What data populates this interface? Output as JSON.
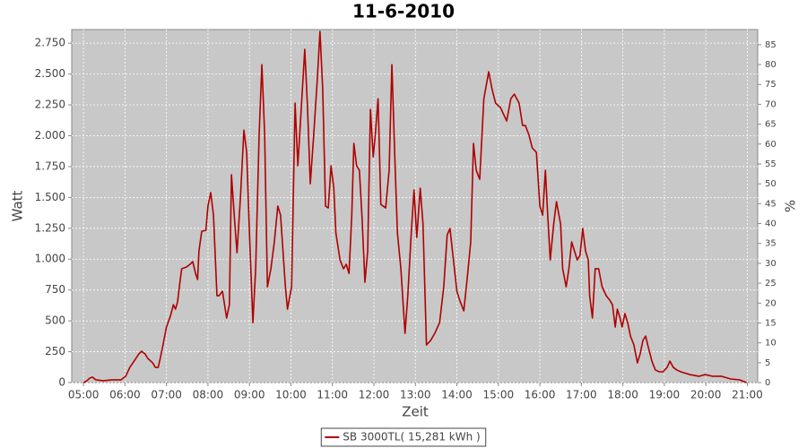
{
  "chart_data": {
    "type": "line",
    "title": "11-6-2010",
    "x_label": "Zeit",
    "y_label": "Watt",
    "y2_label": "%",
    "grid": true,
    "legend": "bottom",
    "background": "#c8c8c8",
    "xlim": [
      "04:43",
      "21:15"
    ],
    "xticks": [
      "05:00",
      "06:00",
      "07:00",
      "08:00",
      "09:00",
      "10:00",
      "11:00",
      "12:00",
      "13:00",
      "14:00",
      "15:00",
      "16:00",
      "17:00",
      "18:00",
      "19:00",
      "20:00",
      "21:00"
    ],
    "ylim": [
      0,
      2860
    ],
    "yticks": [
      0,
      250,
      500,
      750,
      {
        "value": 1000,
        "label": "1.000"
      },
      {
        "value": 1250,
        "label": "1.250"
      },
      {
        "value": 1500,
        "label": "1.500"
      },
      {
        "value": 1750,
        "label": "1.750"
      },
      {
        "value": 2000,
        "label": "2.000"
      },
      {
        "value": 2250,
        "label": "2.250"
      },
      {
        "value": 2500,
        "label": "2.500"
      },
      {
        "value": 2750,
        "label": "2.750"
      }
    ],
    "y2lim": [
      0,
      88.8
    ],
    "y2ticks": [
      0,
      5,
      10,
      15,
      20,
      25,
      30,
      35,
      40,
      45,
      50,
      55,
      60,
      65,
      70,
      75,
      80,
      85
    ],
    "x": [
      "05:00",
      "05:05",
      "05:09",
      "05:13",
      "05:18",
      "05:29",
      "05:41",
      "05:54",
      "06:01",
      "06:07",
      "06:14",
      "06:20",
      "06:24",
      "06:29",
      "06:33",
      "06:40",
      "06:44",
      "06:48",
      "06:51",
      "06:55",
      "07:00",
      "07:06",
      "07:10",
      "07:13",
      "07:16",
      "07:19",
      "07:22",
      "07:29",
      "07:34",
      "07:38",
      "07:42",
      "07:45",
      "07:47",
      "07:51",
      "07:57",
      "08:00",
      "08:04",
      "08:08",
      "08:13",
      "08:16",
      "08:21",
      "08:27",
      "08:31",
      "08:34",
      "08:38",
      "08:42",
      "08:47",
      "08:52",
      "08:56",
      "09:00",
      "09:05",
      "09:09",
      "09:14",
      "09:18",
      "09:22",
      "09:26",
      "09:31",
      "09:36",
      "09:41",
      "09:45",
      "09:52",
      "09:55",
      "10:01",
      "10:06",
      "10:10",
      "10:15",
      "10:20",
      "10:24",
      "10:28",
      "10:33",
      "10:38",
      "10:42",
      "10:46",
      "10:50",
      "10:54",
      "10:58",
      "11:02",
      "11:05",
      "11:11",
      "11:16",
      "11:20",
      "11:24",
      "11:28",
      "11:31",
      "11:35",
      "11:39",
      "11:43",
      "11:47",
      "11:51",
      "11:55",
      "11:59",
      "12:02",
      "12:06",
      "12:10",
      "12:17",
      "12:22",
      "12:26",
      "12:30",
      "12:34",
      "12:39",
      "12:45",
      "12:49",
      "12:54",
      "12:58",
      "13:02",
      "13:07",
      "13:11",
      "13:16",
      "13:22",
      "13:28",
      "13:35",
      "13:41",
      "13:46",
      "13:50",
      "13:55",
      "14:00",
      "14:04",
      "14:10",
      "14:15",
      "14:20",
      "14:24",
      "14:28",
      "14:33",
      "14:39",
      "14:46",
      "14:51",
      "14:56",
      "15:03",
      "15:12",
      "15:18",
      "15:23",
      "15:30",
      "15:35",
      "15:39",
      "15:44",
      "15:49",
      "15:55",
      "16:00",
      "16:04",
      "16:08",
      "16:11",
      "16:15",
      "16:20",
      "16:24",
      "16:30",
      "16:33",
      "16:38",
      "16:42",
      "16:46",
      "16:50",
      "16:54",
      "16:58",
      "17:02",
      "17:06",
      "17:10",
      "17:12",
      "17:16",
      "17:20",
      "17:25",
      "17:30",
      "17:36",
      "17:41",
      "17:45",
      "17:49",
      "17:52",
      "17:56",
      "17:59",
      "18:03",
      "18:07",
      "18:11",
      "18:16",
      "18:21",
      "18:25",
      "18:29",
      "18:33",
      "18:36",
      "18:42",
      "18:47",
      "18:53",
      "18:58",
      "19:04",
      "19:08",
      "19:13",
      "19:18",
      "19:24",
      "19:37",
      "19:50",
      "19:59",
      "20:10",
      "20:23",
      "20:36",
      "20:49",
      "20:59"
    ],
    "series": [
      {
        "name": "SB 3000TL( 15,281 kWh )",
        "color": "#b00000",
        "values": [
          0,
          15,
          36,
          44,
          22,
          15,
          22,
          22,
          51,
          123,
          181,
          232,
          254,
          232,
          196,
          160,
          123,
          123,
          196,
          305,
          450,
          544,
          631,
          595,
          653,
          791,
          922,
          936,
          958,
          980,
          885,
          835,
          1067,
          1226,
          1234,
          1430,
          1539,
          1357,
          704,
          704,
          740,
          523,
          631,
          1684,
          1357,
          1052,
          1502,
          2046,
          1865,
          1212,
          486,
          922,
          2010,
          2576,
          2010,
          776,
          922,
          1139,
          1430,
          1357,
          776,
          595,
          776,
          2264,
          1756,
          2228,
          2700,
          2228,
          1611,
          2010,
          2446,
          2845,
          2373,
          1430,
          1415,
          1756,
          1575,
          1212,
          994,
          922,
          958,
          885,
          1357,
          1938,
          1756,
          1720,
          1321,
          813,
          1067,
          2213,
          1829,
          2010,
          2300,
          1444,
          1415,
          1720,
          2576,
          1865,
          1212,
          922,
          399,
          704,
          1212,
          1560,
          1176,
          1575,
          1284,
          305,
          341,
          399,
          486,
          776,
          1197,
          1248,
          994,
          740,
          668,
          581,
          849,
          1139,
          1938,
          1720,
          1647,
          2300,
          2518,
          2373,
          2264,
          2228,
          2119,
          2300,
          2337,
          2264,
          2083,
          2083,
          2010,
          1901,
          1865,
          1430,
          1357,
          1720,
          1393,
          994,
          1284,
          1466,
          1284,
          922,
          776,
          922,
          1139,
          1067,
          994,
          1030,
          1248,
          1067,
          994,
          704,
          523,
          922,
          922,
          776,
          704,
          668,
          631,
          450,
          595,
          523,
          450,
          559,
          486,
          377,
          305,
          160,
          232,
          341,
          377,
          305,
          174,
          102,
          87,
          87,
          123,
          174,
          123,
          102,
          87,
          65,
          51,
          65,
          51,
          51,
          29,
          22,
          0
        ]
      }
    ]
  }
}
